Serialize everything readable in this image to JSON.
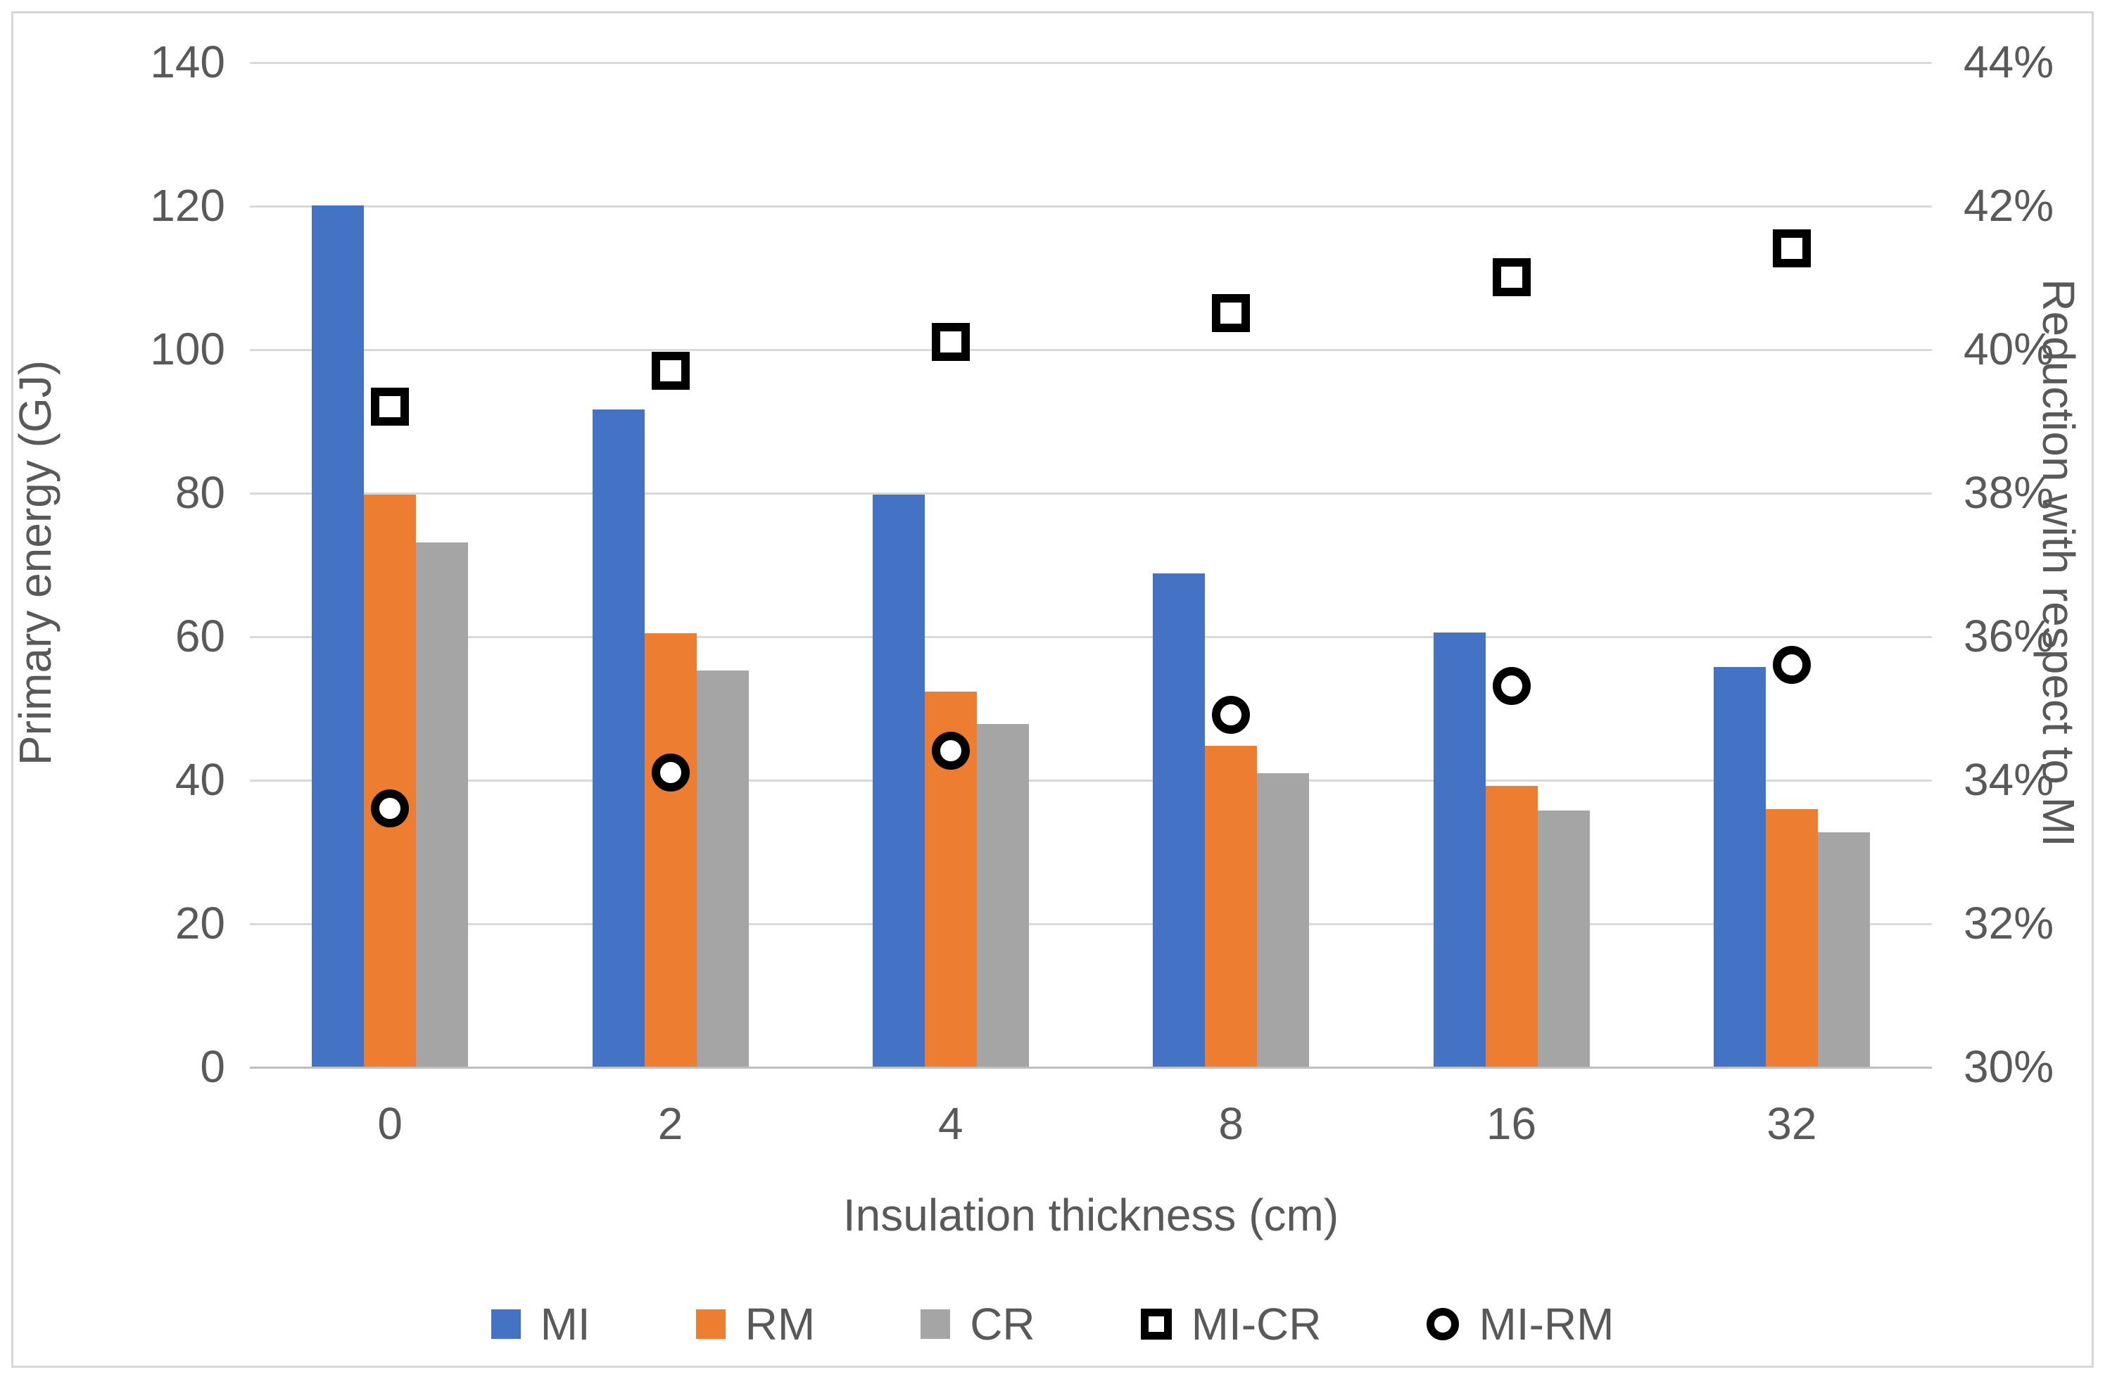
{
  "chart_data": {
    "type": "bar",
    "subtype": "grouped-bar-with-scatter-overlay",
    "categories": [
      "0",
      "2",
      "4",
      "8",
      "16",
      "32"
    ],
    "bar_series": [
      {
        "name": "MI",
        "color": "#4472C4",
        "axis": "left",
        "values": [
          120.0,
          91.6,
          79.7,
          68.7,
          60.5,
          55.7
        ]
      },
      {
        "name": "RM",
        "color": "#ED7D31",
        "axis": "left",
        "values": [
          79.7,
          60.4,
          52.3,
          44.7,
          39.1,
          35.9
        ]
      },
      {
        "name": "CR",
        "color": "#A5A5A5",
        "axis": "left",
        "values": [
          73.0,
          55.2,
          47.7,
          40.9,
          35.7,
          32.6
        ]
      }
    ],
    "scatter_series": [
      {
        "name": "MI-CR",
        "marker": "open-square",
        "color": "#000000",
        "axis": "right",
        "values_pct": [
          39.2,
          39.7,
          40.1,
          40.5,
          41.0,
          41.4
        ]
      },
      {
        "name": "MI-RM",
        "marker": "open-circle",
        "color": "#000000",
        "axis": "right",
        "values_pct": [
          33.6,
          34.1,
          34.4,
          34.9,
          35.3,
          35.6
        ]
      }
    ],
    "left_axis": {
      "title": "Primary energy  (GJ)",
      "min": 0,
      "max": 140,
      "step": 20,
      "ticks": [
        "140",
        "120",
        "100",
        "80",
        "60",
        "40",
        "20",
        "0"
      ]
    },
    "right_axis": {
      "title": "Reduction with respect to MI",
      "min": 30,
      "max": 44,
      "step": 2,
      "ticks": [
        "44%",
        "42%",
        "40%",
        "38%",
        "36%",
        "34%",
        "32%",
        "30%"
      ]
    },
    "x_axis": {
      "title": "Insulation thickness  (cm)",
      "tick_labels": [
        "0",
        "2",
        "4",
        "8",
        "16",
        "32"
      ]
    },
    "legend": {
      "position": "bottom",
      "items": [
        {
          "label": "MI",
          "key": "fill",
          "color": "#4472C4"
        },
        {
          "label": "RM",
          "key": "fill",
          "color": "#ED7D31"
        },
        {
          "label": "CR",
          "key": "fill",
          "color": "#A5A5A5"
        },
        {
          "label": "MI-CR",
          "key": "open-square",
          "color": "#000000"
        },
        {
          "label": "MI-RM",
          "key": "open-circle",
          "color": "#000000"
        }
      ]
    },
    "grid": true,
    "gridline_color": "#D9D9D9",
    "text_color": "#595959",
    "background_color": "#FFFFFF",
    "border_color": "#D6D6D6"
  }
}
